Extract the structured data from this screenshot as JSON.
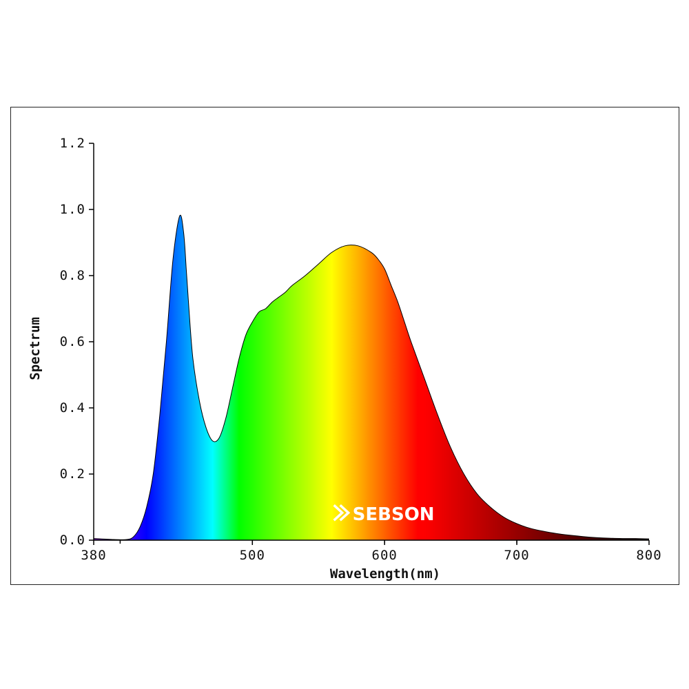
{
  "chart_data": {
    "type": "area",
    "title": "",
    "xlabel": "Wavelength(nm)",
    "ylabel": "Spectrum",
    "xlim": [
      380,
      800
    ],
    "ylim": [
      0,
      1.2
    ],
    "x_ticks": [
      380,
      500,
      600,
      700,
      800
    ],
    "x_tick_labels": [
      "380",
      "500",
      "600",
      "700",
      "800"
    ],
    "y_ticks": [
      0.0,
      0.2,
      0.4,
      0.6,
      0.8,
      1.0,
      1.2
    ],
    "y_tick_labels": [
      "0.0",
      "0.2",
      "0.4",
      "0.6",
      "0.8",
      "1.0",
      "1.2"
    ],
    "grid": false,
    "fill": "wavelength-colored spectrum",
    "series": [
      {
        "x": [
          380,
          395,
          405,
          410,
          415,
          420,
          425,
          430,
          435,
          440,
          445,
          448,
          450,
          452,
          455,
          460,
          465,
          470,
          475,
          480,
          485,
          490,
          495,
          500,
          505,
          510,
          515,
          520,
          525,
          530,
          540,
          550,
          560,
          570,
          580,
          590,
          595,
          600,
          605,
          610,
          615,
          620,
          630,
          640,
          650,
          660,
          670,
          680,
          690,
          700,
          710,
          720,
          730,
          740,
          750,
          760,
          770,
          780,
          790,
          800
        ],
        "y": [
          0.005,
          0.002,
          0.002,
          0.01,
          0.04,
          0.1,
          0.2,
          0.38,
          0.6,
          0.85,
          0.98,
          0.93,
          0.82,
          0.7,
          0.55,
          0.42,
          0.34,
          0.3,
          0.31,
          0.37,
          0.46,
          0.55,
          0.62,
          0.66,
          0.69,
          0.7,
          0.72,
          0.735,
          0.75,
          0.77,
          0.8,
          0.835,
          0.87,
          0.89,
          0.89,
          0.87,
          0.85,
          0.82,
          0.77,
          0.72,
          0.66,
          0.6,
          0.49,
          0.38,
          0.28,
          0.2,
          0.14,
          0.1,
          0.07,
          0.05,
          0.036,
          0.027,
          0.02,
          0.015,
          0.011,
          0.008,
          0.006,
          0.005,
          0.005,
          0.004
        ]
      }
    ],
    "annotations": []
  },
  "logo": {
    "text": "SEBSON",
    "color": "#ffffff"
  }
}
